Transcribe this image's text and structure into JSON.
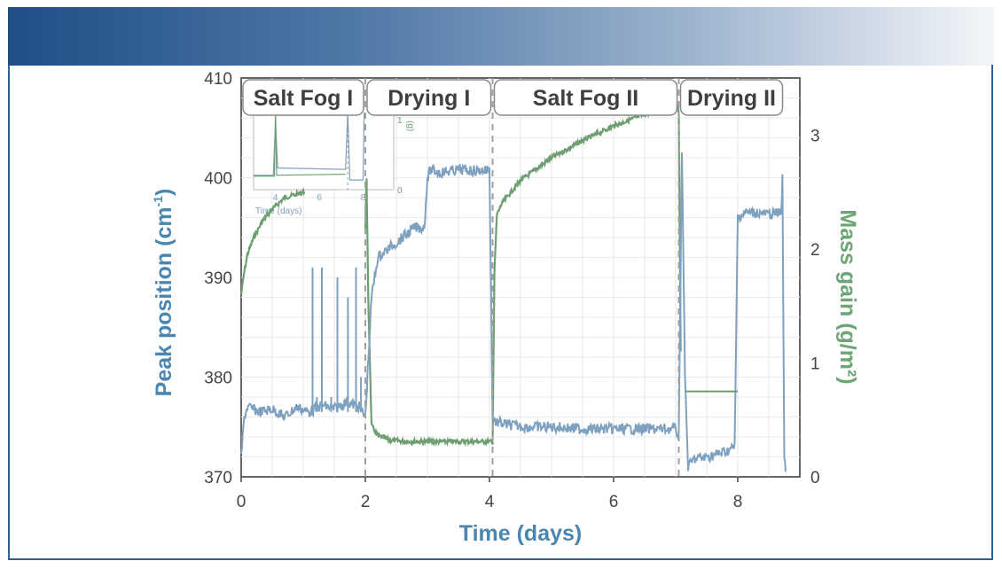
{
  "colors": {
    "banner_start": "#1f4e87",
    "banner_end": "#f4f6f9",
    "frame": "#2e5f8f",
    "peak_series": "#7fa1c0",
    "mass_series": "#6e9e72",
    "left_axis_title": "#4a87b0",
    "right_axis_title": "#6fa476",
    "x_axis_title": "#4a87b0"
  },
  "chart_data": {
    "type": "line",
    "xlabel": "Time (days)",
    "ylabel_left": "Peak position (cm-1)",
    "ylabel_left_main": "Peak position (cm",
    "ylabel_left_sup": "-1",
    "ylabel_left_close": ")",
    "ylabel_right": "Mass gain (g/m²)",
    "xlim": [
      0,
      9
    ],
    "ylim_left": [
      370,
      410
    ],
    "ylim_right": [
      0,
      3.5
    ],
    "xticks": [
      0,
      2,
      4,
      6,
      8
    ],
    "yticks_left": [
      370,
      380,
      390,
      400,
      410
    ],
    "yticks_right": [
      0,
      1,
      2,
      3
    ],
    "grid": true,
    "phases": [
      {
        "label": "Salt Fog I",
        "start": 0,
        "end": 2
      },
      {
        "label": "Drying I",
        "start": 2,
        "end": 4.05
      },
      {
        "label": "Salt Fog II",
        "start": 4.05,
        "end": 7.05
      },
      {
        "label": "Drying II",
        "start": 7.05,
        "end": 8.75
      }
    ],
    "phase_boundaries": [
      2.0,
      4.05,
      7.05
    ],
    "series": [
      {
        "axis": "left",
        "x": [
          0,
          0.05,
          0.1,
          0.3,
          0.5,
          0.7,
          0.9,
          1.1,
          1.3,
          1.5,
          1.7,
          1.9,
          2.0,
          2.05,
          2.1,
          2.2,
          2.4,
          2.6,
          2.8,
          2.95,
          3.0,
          3.05,
          3.2,
          3.5,
          3.8,
          4.0,
          4.05,
          4.1,
          4.3,
          4.6,
          5.0,
          5.5,
          6.0,
          6.5,
          7.0,
          7.05,
          7.1,
          7.15,
          7.2,
          7.3,
          7.5,
          7.8,
          7.95,
          8.0,
          8.1,
          8.3,
          8.5,
          8.7,
          8.72,
          8.75,
          8.77
        ],
        "y": [
          372,
          376,
          377,
          376.5,
          376.8,
          376,
          377,
          376.5,
          377.2,
          376.8,
          377.5,
          377,
          376,
          382,
          388,
          392,
          393,
          394,
          395,
          395,
          400,
          400.8,
          400.5,
          400.8,
          400.7,
          400.8,
          376,
          375.5,
          375.2,
          375,
          375,
          374.8,
          374.8,
          374.8,
          374.8,
          374,
          403,
          380,
          371,
          371.8,
          372,
          372.5,
          373,
          396,
          396.5,
          396.5,
          396.3,
          396.5,
          400,
          372,
          370.5
        ]
      },
      {
        "axis": "right",
        "x": [
          0,
          0.05,
          0.1,
          0.2,
          0.35,
          0.5,
          0.7,
          0.9,
          1.0,
          1.02,
          2.0,
          2.02,
          2.05,
          2.1,
          2.2,
          2.4,
          2.7,
          3.0,
          3.5,
          4.0,
          4.05,
          4.08,
          4.12,
          4.2,
          4.5,
          5.0,
          5.5,
          6.0,
          6.5,
          7.0,
          7.05,
          7.08
        ],
        "y": [
          1.6,
          1.8,
          1.95,
          2.1,
          2.25,
          2.35,
          2.45,
          2.48,
          2.5,
          2.5,
          2.2,
          2.6,
          1.5,
          0.45,
          0.36,
          0.32,
          0.31,
          0.31,
          0.31,
          0.31,
          0.3,
          1.8,
          2.3,
          2.4,
          2.6,
          2.8,
          2.95,
          3.08,
          3.18,
          3.3,
          3.2,
          1.1
        ],
        "segments": [
          [
            0,
            9
          ],
          [
            10,
            31
          ]
        ]
      }
    ],
    "annotation_line": {
      "x": [
        7.15,
        8.0
      ],
      "y": 0.75,
      "axis": "right"
    },
    "inset": {
      "xlabel": "Time (days)",
      "xticks": [
        4,
        6,
        8
      ],
      "yticks": [
        0,
        1
      ],
      "ylabel": "(g)",
      "xlim": [
        3,
        9.4
      ],
      "ylim": [
        0,
        1.8
      ]
    }
  }
}
